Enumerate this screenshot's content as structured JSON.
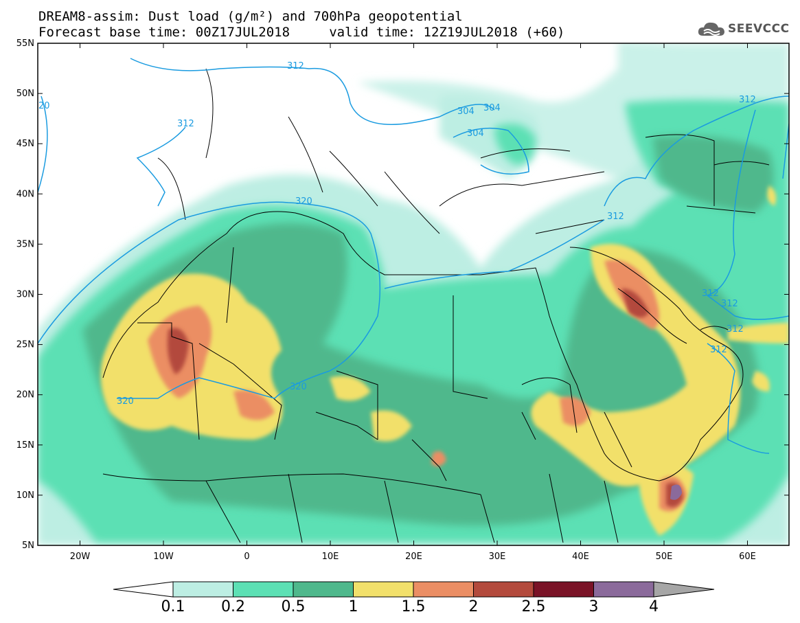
{
  "title_line1": "DREAM8-assim: Dust load (g/m²) and 700hPa geopotential",
  "title_line2": "Forecast base time: 00Z17JUL2018     valid time: 12Z19JUL2018 (+60)",
  "logo_text": "SEEVCCC",
  "lat_ticks": [
    "55N",
    "50N",
    "45N",
    "40N",
    "35N",
    "30N",
    "25N",
    "20N",
    "15N",
    "10N",
    "5N"
  ],
  "lon_ticks": [
    "20W",
    "10W",
    "0",
    "10E",
    "20E",
    "30E",
    "40E",
    "50E",
    "60E"
  ],
  "contour_labels": [
    "312",
    "320",
    "304",
    "304",
    "304",
    "312",
    "320",
    "320",
    "312",
    "312",
    "312",
    "312",
    "312",
    "312",
    "20"
  ],
  "colorbar": {
    "colors": [
      "#ffffff",
      "#bdeee3",
      "#5ce0b4",
      "#4fb88c",
      "#f2e06b",
      "#eb8e64",
      "#b34a3c",
      "#7a1327",
      "#8b6a9b",
      "#a6a6a6"
    ],
    "labels": [
      "0.1",
      "0.2",
      "0.5",
      "1",
      "1.5",
      "2",
      "2.5",
      "3",
      "4"
    ]
  }
}
